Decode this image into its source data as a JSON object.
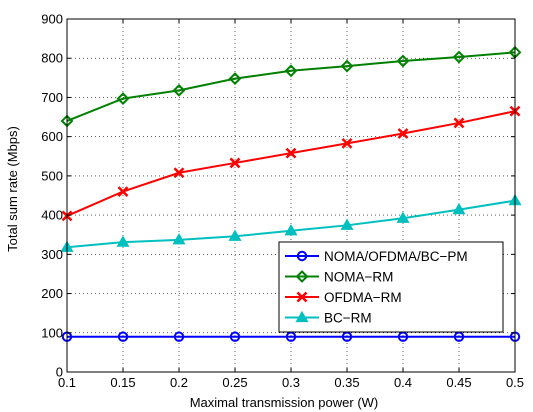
{
  "chart_data": {
    "type": "line",
    "title": "",
    "xlabel": "Maximal transmission power (W)",
    "ylabel": "Total sum rate (Mbps)",
    "x": [
      0.1,
      0.15,
      0.2,
      0.25,
      0.3,
      0.35,
      0.4,
      0.45,
      0.5
    ],
    "xlim": [
      0.1,
      0.5
    ],
    "ylim": [
      0,
      900
    ],
    "xticks": [
      "0.1",
      "0.15",
      "0.2",
      "0.25",
      "0.3",
      "0.35",
      "0.4",
      "0.45",
      "0.5"
    ],
    "yticks": [
      "0",
      "100",
      "200",
      "300",
      "400",
      "500",
      "600",
      "700",
      "800",
      "900"
    ],
    "grid": true,
    "legend_position": "bottom-right",
    "series": [
      {
        "name": "NOMA/OFDMA/BC−PM",
        "color": "#0000ff",
        "marker": "circle",
        "values": [
          90,
          90,
          90,
          90,
          90,
          90,
          90,
          90,
          90
        ]
      },
      {
        "name": "NOMA−RM",
        "color": "#008000",
        "marker": "diamond",
        "values": [
          640,
          697,
          718,
          748,
          768,
          780,
          793,
          803,
          815
        ]
      },
      {
        "name": "OFDMA−RM",
        "color": "#ff0000",
        "marker": "x",
        "values": [
          398,
          460,
          508,
          533,
          558,
          583,
          608,
          635,
          665
        ]
      },
      {
        "name": "BC−RM",
        "color": "#00bfbf",
        "marker": "triangle",
        "values": [
          318,
          331,
          337,
          346,
          360,
          374,
          392,
          414,
          437
        ]
      }
    ]
  }
}
